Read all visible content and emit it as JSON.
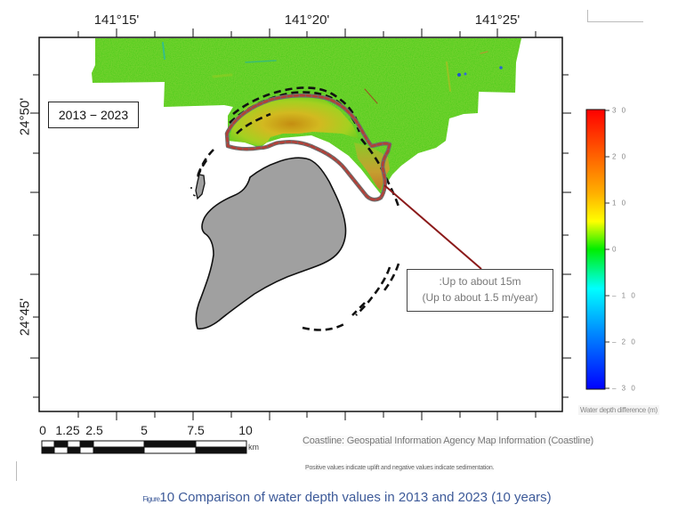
{
  "map": {
    "longitude_labels": [
      "141°15'",
      "141°20'",
      "141°25'"
    ],
    "latitude_labels": [
      "24°50'",
      "24°45'"
    ],
    "period_label": "2013 − 2023",
    "annotation": {
      "line1": ":Up to about 15m",
      "line2": "(Up to about 1.5 m/year)"
    },
    "colors": {
      "island_fill": "#a0a0a0",
      "survey_base": "#33cc11",
      "dashed_line": "#111111",
      "red_dotted_line": "#a53a32",
      "leader_line": "#8b1a1a"
    }
  },
  "colorbar": {
    "ticks": [
      "3 0",
      "2 0",
      "1 0",
      "0",
      "– 1 0",
      "– 2 0",
      "– 3 0"
    ],
    "tick_values": [
      30,
      20,
      10,
      0,
      -10,
      -20,
      -30
    ],
    "title": "Water depth difference (m)",
    "gradient": [
      "#ff0000",
      "#ff6a00",
      "#ffb000",
      "#ffff00",
      "#00ee00",
      "#00ffff",
      "#0088ff",
      "#0000ff"
    ]
  },
  "scalebar": {
    "labels": [
      "0",
      "1.25",
      "2.5",
      "5",
      "7.5",
      "10"
    ],
    "values": [
      0,
      1.25,
      2.5,
      5,
      7.5,
      10
    ],
    "unit": "km"
  },
  "credits": {
    "coastline": "Coastline: Geospatial Information Agency Map Information (Coastline)",
    "note": "Positive values indicate uplift and negative values indicate sedimentation."
  },
  "caption": {
    "figure_prefix": "Figure",
    "text": "10 Comparison of water depth values in 2013 and 2023 (10 years)"
  }
}
